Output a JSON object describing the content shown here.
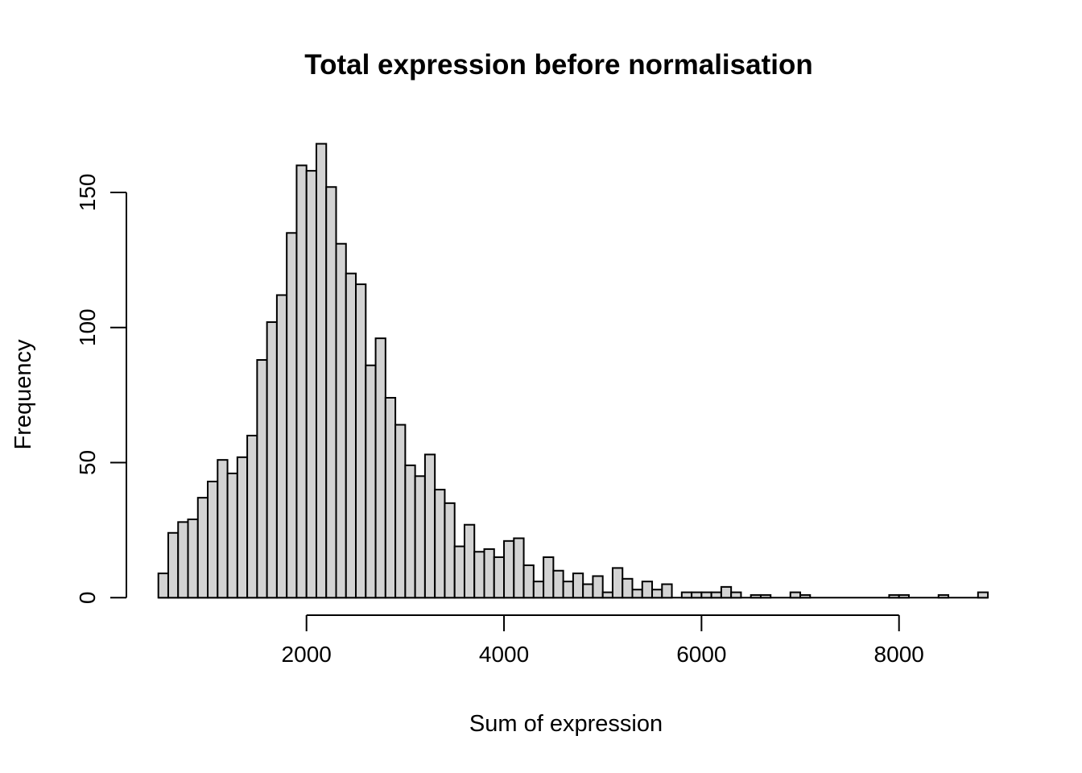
{
  "title": "Total expression before normalisation",
  "chart_data": {
    "type": "bar",
    "subtype": "histogram",
    "title": "Total expression before normalisation",
    "xlabel": "Sum of expression",
    "ylabel": "Frequency",
    "bin_start": 500,
    "bin_width": 100,
    "counts": [
      9,
      24,
      28,
      29,
      37,
      43,
      51,
      46,
      52,
      60,
      88,
      102,
      112,
      135,
      160,
      158,
      168,
      152,
      131,
      120,
      116,
      86,
      96,
      74,
      64,
      49,
      45,
      53,
      40,
      35,
      19,
      27,
      17,
      18,
      15,
      21,
      22,
      12,
      6,
      15,
      10,
      6,
      9,
      5,
      8,
      2,
      11,
      7,
      3,
      6,
      3,
      5,
      0,
      2,
      2,
      2,
      2,
      4,
      2,
      0,
      1,
      1,
      0,
      0,
      2,
      1,
      0,
      0,
      0,
      0,
      0,
      0,
      0,
      0,
      1,
      1,
      0,
      0,
      0,
      1,
      0,
      0,
      0,
      2
    ],
    "x_ticks": [
      2000,
      4000,
      6000,
      8000
    ],
    "y_ticks": [
      0,
      50,
      100,
      150
    ],
    "xlim": [
      500,
      8900
    ],
    "ylim": [
      0,
      168
    ],
    "grid": false,
    "legend_position": "none",
    "bar_fill": "#d3d3d3",
    "bar_stroke": "#000000",
    "axis_color": "#000000",
    "background": "#ffffff"
  }
}
